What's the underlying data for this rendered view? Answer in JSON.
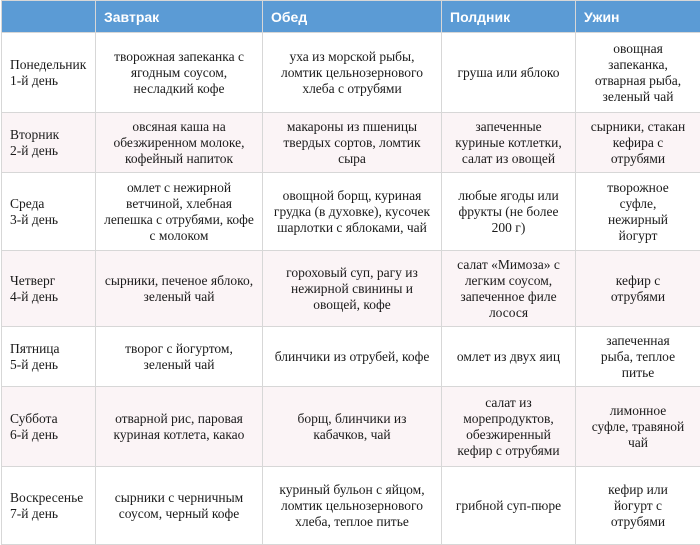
{
  "headers": [
    "",
    "Завтрак",
    "Обед",
    "Полдник",
    "Ужин"
  ],
  "rows": [
    {
      "day": [
        "Понедельник",
        "1-й день"
      ],
      "breakfast": [
        "творожная запеканка с",
        "ягодным соусом,",
        "несладкий кофе"
      ],
      "lunch": [
        "уха из морской рыбы,",
        "ломтик цельнозернового",
        "хлеба с отрубями"
      ],
      "snack": [
        "груша или яблоко"
      ],
      "dinner": [
        "овощная",
        "запеканка,",
        "отварная рыба,",
        "зеленый чай"
      ]
    },
    {
      "day": [
        "Вторник",
        "2-й день"
      ],
      "breakfast": [
        "овсяная каша на",
        "обезжиренном молоке,",
        "кофейный напиток"
      ],
      "lunch": [
        "макароны из пшеницы",
        "твердых сортов, ломтик",
        "сыра"
      ],
      "snack": [
        "запеченные",
        "куриные котлетки,",
        "салат из овощей"
      ],
      "dinner": [
        "сырники, стакан",
        "кефира с",
        "отрубями"
      ]
    },
    {
      "day": [
        "Среда",
        "3-й день"
      ],
      "breakfast": [
        "омлет с нежирной",
        "ветчиной, хлебная",
        "лепешка с отрубями, кофе",
        "с молоком"
      ],
      "lunch": [
        "овощной борщ, куриная",
        "грудка (в духовке), кусочек",
        "шарлотки с яблоками, чай"
      ],
      "snack": [
        "любые ягоды или",
        "фрукты (не более",
        "200 г)"
      ],
      "dinner": [
        "творожное",
        "суфле,",
        "нежирный",
        "йогурт"
      ]
    },
    {
      "day": [
        "Четверг",
        "4-й день"
      ],
      "breakfast": [
        "сырники, печеное яблоко,",
        "зеленый чай"
      ],
      "lunch": [
        "гороховый суп, рагу из",
        "нежирной свинины и",
        "овощей, кофе"
      ],
      "snack": [
        "салат «Мимоза» с",
        "легким соусом,",
        "запеченное филе",
        "лосося"
      ],
      "dinner": [
        "кефир с",
        "отрубями"
      ]
    },
    {
      "day": [
        "Пятница",
        "5-й день"
      ],
      "breakfast": [
        "творог с йогуртом,",
        "зеленый чай"
      ],
      "lunch": [
        "блинчики из отрубей, кофе"
      ],
      "snack": [
        "омлет из двух яиц"
      ],
      "dinner": [
        "запеченная",
        "рыба, теплое",
        "питье"
      ]
    },
    {
      "day": [
        "Суббота",
        "6-й день"
      ],
      "breakfast": [
        "отварной рис, паровая",
        "куриная котлета, какао"
      ],
      "lunch": [
        "борщ, блинчики из",
        "кабачков, чай"
      ],
      "snack": [
        "салат из",
        "морепродуктов,",
        "обезжиренный",
        "кефир с отрубями"
      ],
      "dinner": [
        "лимонное",
        "суфле, травяной",
        "чай"
      ]
    },
    {
      "day": [
        "Воскресенье",
        "7-й день"
      ],
      "breakfast": [
        "сырники с черничным",
        "соусом, черный кофе"
      ],
      "lunch": [
        "куриный бульон с яйцом,",
        "ломтик цельнозернового",
        "хлеба, теплое питье"
      ],
      "snack": [
        "грибной суп-пюре"
      ],
      "dinner": [
        "кефир или",
        "йогурт с",
        "отрубями"
      ]
    }
  ]
}
